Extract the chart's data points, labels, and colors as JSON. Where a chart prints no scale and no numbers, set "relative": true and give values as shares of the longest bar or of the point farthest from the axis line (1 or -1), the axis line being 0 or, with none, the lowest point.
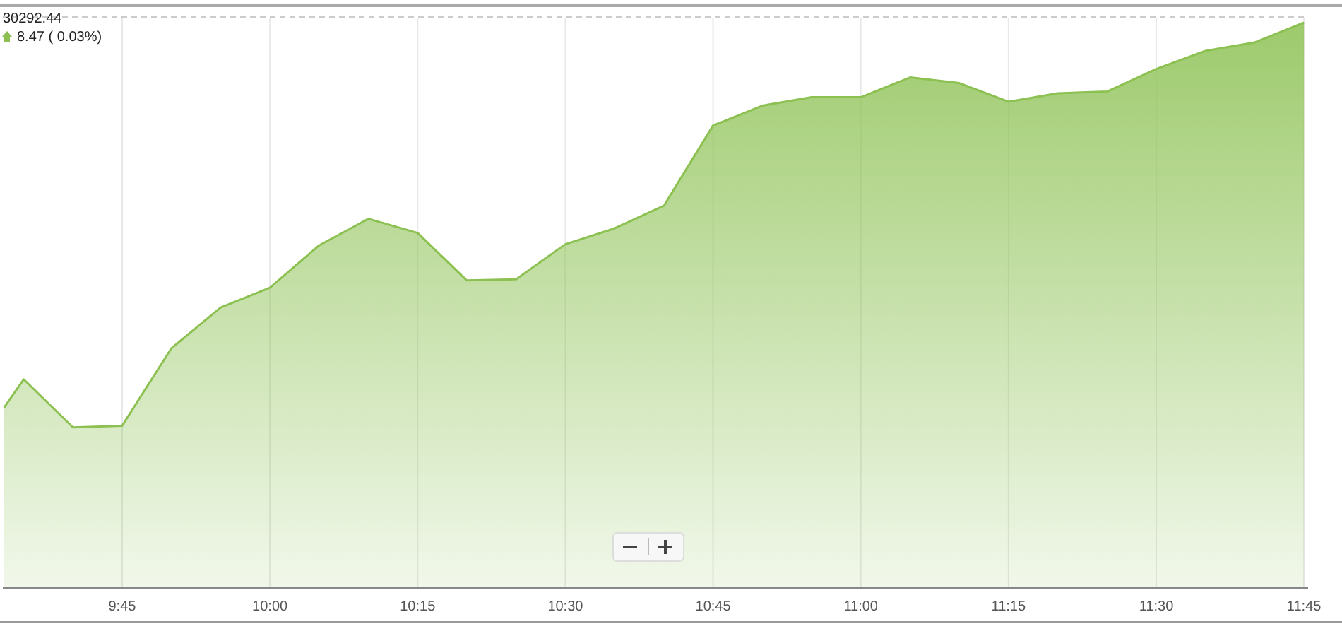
{
  "chart_data": {
    "type": "area",
    "relative": true,
    "x": [
      9.55,
      9.5833,
      9.6667,
      9.75,
      9.8333,
      9.9167,
      10,
      10.0833,
      10.1667,
      10.25,
      10.3333,
      10.4167,
      10.5,
      10.5833,
      10.6667,
      10.75,
      10.8333,
      10.9167,
      11,
      11.0833,
      11.1667,
      11.25,
      11.3333,
      11.4167,
      11.5,
      11.5833,
      11.6667,
      11.75
    ],
    "series": [
      {
        "color": "#8cc152",
        "values": [
          0.319,
          0.369,
          0.284,
          0.287,
          0.424,
          0.496,
          0.531,
          0.606,
          0.653,
          0.628,
          0.544,
          0.546,
          0.608,
          0.636,
          0.676,
          0.818,
          0.853,
          0.868,
          0.868,
          0.903,
          0.893,
          0.86,
          0.875,
          0.878,
          0.918,
          0.95,
          0.965,
          1
        ]
      }
    ],
    "xlim": [
      9.548,
      11.757
    ],
    "xticks": [
      {
        "value": 9.75,
        "label": "9:45"
      },
      {
        "value": 10,
        "label": "10:00"
      },
      {
        "value": 10.25,
        "label": "10:15"
      },
      {
        "value": 10.5,
        "label": "10:30"
      },
      {
        "value": 10.75,
        "label": "10:45"
      },
      {
        "value": 11,
        "label": "11:00"
      },
      {
        "value": 11.25,
        "label": "11:15"
      },
      {
        "value": 11.5,
        "label": "11:30"
      },
      {
        "value": 11.75,
        "label": "11:45"
      }
    ],
    "ref_lines": [
      {
        "axis": "y",
        "value": 1.01,
        "label": null,
        "color": "#cccccc",
        "line_style": "dashed"
      }
    ],
    "annotations": [
      "30292.44",
      "8.47 ( 0.03%)"
    ],
    "grid": "x",
    "marker": "none",
    "line_style": "solid"
  }
}
